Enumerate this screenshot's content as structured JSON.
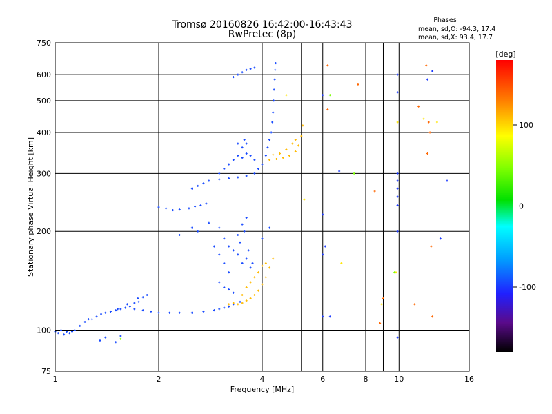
{
  "chart_data": {
    "type": "scatter",
    "title": "Tromsø 20160826 16:42:00-16:43:43",
    "subtitle": "RwPretec (8p)",
    "xlabel": "Frequency [MHz]",
    "ylabel": "Stationary phase Virtual Height [km]",
    "x_scale": "log",
    "y_scale": "log",
    "xlim": [
      1,
      16
    ],
    "ylim": [
      75,
      750
    ],
    "x_ticks": [
      {
        "value": 1,
        "label": "1"
      },
      {
        "value": 2,
        "label": "2"
      },
      {
        "value": 4,
        "label": "4"
      },
      {
        "value": 6,
        "label": "6"
      },
      {
        "value": 8,
        "label": "8"
      },
      {
        "value": 10,
        "label": "10"
      },
      {
        "value": 16,
        "label": "16"
      }
    ],
    "x_minor": [
      5.2,
      9.0
    ],
    "y_ticks": [
      {
        "value": 75,
        "label": "75"
      },
      {
        "value": 100,
        "label": "100"
      },
      {
        "value": 200,
        "label": "200"
      },
      {
        "value": 300,
        "label": "300"
      },
      {
        "value": 400,
        "label": "400"
      },
      {
        "value": 500,
        "label": "500"
      },
      {
        "value": 600,
        "label": "600"
      },
      {
        "value": 750,
        "label": "750"
      }
    ],
    "grid": true,
    "legend": {
      "title": "Phases",
      "line1": "mean, sd,O:  -94.3, 17.4",
      "line2": "mean, sd,X:   93.4, 17.7",
      "position": "top-right"
    },
    "colorbar": {
      "label": "[deg]",
      "ticks": [
        {
          "value": 100,
          "label": "100"
        },
        {
          "value": 0,
          "label": "0"
        },
        {
          "value": -100,
          "label": "-100"
        }
      ],
      "range": [
        -180,
        180
      ]
    },
    "series": [
      {
        "mode": "O",
        "phase_deg": -94,
        "points": [
          [
            1.0,
            99
          ],
          [
            1.02,
            98
          ],
          [
            1.04,
            100
          ],
          [
            1.06,
            97
          ],
          [
            1.08,
            99
          ],
          [
            1.1,
            98
          ],
          [
            1.12,
            99
          ],
          [
            1.14,
            100
          ],
          [
            1.18,
            103
          ],
          [
            1.22,
            106
          ],
          [
            1.25,
            108
          ],
          [
            1.28,
            108
          ],
          [
            1.32,
            110
          ],
          [
            1.36,
            112
          ],
          [
            1.4,
            113
          ],
          [
            1.45,
            114
          ],
          [
            1.5,
            115
          ],
          [
            1.55,
            116
          ],
          [
            1.6,
            117
          ],
          [
            1.65,
            118
          ],
          [
            1.7,
            121
          ],
          [
            1.75,
            122
          ],
          [
            1.8,
            126
          ],
          [
            1.85,
            128
          ],
          [
            1.62,
            120
          ],
          [
            1.52,
            116
          ],
          [
            1.74,
            125
          ],
          [
            1.7,
            116
          ],
          [
            1.8,
            115
          ],
          [
            1.9,
            114
          ],
          [
            2.0,
            113
          ],
          [
            2.15,
            113
          ],
          [
            2.3,
            113
          ],
          [
            2.5,
            113
          ],
          [
            2.7,
            114
          ],
          [
            2.9,
            115
          ],
          [
            3.0,
            116
          ],
          [
            3.1,
            117
          ],
          [
            3.2,
            118
          ],
          [
            3.3,
            120
          ],
          [
            3.45,
            122
          ],
          [
            2.0,
            237
          ],
          [
            2.1,
            235
          ],
          [
            2.2,
            232
          ],
          [
            2.3,
            233
          ],
          [
            2.45,
            235
          ],
          [
            2.55,
            238
          ],
          [
            2.65,
            240
          ],
          [
            2.75,
            243
          ],
          [
            2.5,
            270
          ],
          [
            2.6,
            275
          ],
          [
            2.7,
            280
          ],
          [
            2.8,
            285
          ],
          [
            3.0,
            288
          ],
          [
            3.2,
            290
          ],
          [
            3.4,
            292
          ],
          [
            3.6,
            295
          ],
          [
            3.8,
            300
          ],
          [
            3.9,
            310
          ],
          [
            4.0,
            320
          ],
          [
            4.1,
            340
          ],
          [
            4.15,
            360
          ],
          [
            4.2,
            380
          ],
          [
            4.25,
            400
          ],
          [
            4.28,
            430
          ],
          [
            4.3,
            460
          ],
          [
            4.32,
            500
          ],
          [
            4.33,
            540
          ],
          [
            4.35,
            580
          ],
          [
            4.36,
            620
          ],
          [
            4.38,
            650
          ],
          [
            3.0,
            300
          ],
          [
            3.1,
            310
          ],
          [
            3.2,
            320
          ],
          [
            3.3,
            330
          ],
          [
            3.4,
            340
          ],
          [
            3.5,
            335
          ],
          [
            3.6,
            345
          ],
          [
            3.7,
            340
          ],
          [
            3.8,
            330
          ],
          [
            3.4,
            370
          ],
          [
            3.5,
            360
          ],
          [
            3.6,
            370
          ],
          [
            3.55,
            380
          ],
          [
            3.0,
            205
          ],
          [
            3.1,
            190
          ],
          [
            3.2,
            180
          ],
          [
            3.3,
            175
          ],
          [
            3.4,
            170
          ],
          [
            3.5,
            160
          ],
          [
            3.6,
            165
          ],
          [
            3.7,
            155
          ],
          [
            3.4,
            195
          ],
          [
            3.5,
            210
          ],
          [
            3.6,
            220
          ],
          [
            3.55,
            200
          ],
          [
            3.45,
            185
          ],
          [
            3.65,
            175
          ],
          [
            3.75,
            160
          ],
          [
            2.3,
            195
          ],
          [
            2.5,
            205
          ],
          [
            2.6,
            200
          ],
          [
            2.8,
            212
          ],
          [
            2.9,
            180
          ],
          [
            3.0,
            170
          ],
          [
            3.1,
            160
          ],
          [
            3.2,
            150
          ],
          [
            3.0,
            140
          ],
          [
            3.1,
            135
          ],
          [
            3.2,
            133
          ],
          [
            3.3,
            130
          ],
          [
            3.3,
            590
          ],
          [
            3.4,
            600
          ],
          [
            3.5,
            610
          ],
          [
            3.6,
            620
          ],
          [
            3.7,
            625
          ],
          [
            3.8,
            630
          ],
          [
            4.2,
            205
          ],
          [
            4.0,
            190
          ],
          [
            1.4,
            95
          ],
          [
            1.5,
            92
          ],
          [
            1.55,
            96
          ],
          [
            1.35,
            93
          ]
        ]
      },
      {
        "mode": "X",
        "phase_deg": 110,
        "points": [
          [
            3.2,
            120
          ],
          [
            3.3,
            121
          ],
          [
            3.4,
            120
          ],
          [
            3.5,
            121
          ],
          [
            3.6,
            123
          ],
          [
            3.7,
            125
          ],
          [
            3.8,
            128
          ],
          [
            3.9,
            132
          ],
          [
            4.0,
            138
          ],
          [
            4.1,
            145
          ],
          [
            4.2,
            155
          ],
          [
            4.3,
            165
          ],
          [
            3.6,
            135
          ],
          [
            3.7,
            140
          ],
          [
            3.8,
            145
          ],
          [
            3.9,
            150
          ],
          [
            4.0,
            157
          ],
          [
            4.1,
            160
          ],
          [
            3.5,
            128
          ],
          [
            4.2,
            330
          ],
          [
            4.4,
            332
          ],
          [
            4.6,
            335
          ],
          [
            4.8,
            340
          ],
          [
            5.0,
            350
          ],
          [
            5.1,
            365
          ],
          [
            5.2,
            390
          ],
          [
            5.25,
            420
          ],
          [
            4.5,
            345
          ],
          [
            4.7,
            355
          ],
          [
            4.9,
            370
          ],
          [
            5.0,
            380
          ],
          [
            4.3,
            342
          ]
        ]
      },
      {
        "mode": "scatter",
        "phase_deg": -100,
        "points": [
          [
            6.0,
            520
          ],
          [
            6.0,
            225
          ],
          [
            6.0,
            170
          ],
          [
            6.0,
            110
          ],
          [
            6.7,
            305
          ],
          [
            9.9,
            600
          ],
          [
            9.9,
            530
          ],
          [
            9.9,
            300
          ],
          [
            9.9,
            285
          ],
          [
            9.9,
            270
          ],
          [
            9.9,
            255
          ],
          [
            9.9,
            240
          ],
          [
            9.9,
            200
          ],
          [
            12.1,
            580
          ],
          [
            12.5,
            615
          ],
          [
            13.2,
            190
          ],
          [
            13.8,
            285
          ],
          [
            9.9,
            95
          ],
          [
            6.3,
            110
          ],
          [
            6.1,
            180
          ]
        ]
      },
      {
        "mode": "scatter",
        "phase_deg": 140,
        "points": [
          [
            6.2,
            640
          ],
          [
            6.2,
            470
          ],
          [
            7.6,
            560
          ],
          [
            8.5,
            265
          ],
          [
            8.8,
            105
          ],
          [
            9.0,
            125
          ],
          [
            11.1,
            120
          ],
          [
            11.4,
            480
          ],
          [
            12.1,
            345
          ],
          [
            12.3,
            400
          ],
          [
            12.5,
            110
          ],
          [
            12.0,
            640
          ],
          [
            12.4,
            180
          ],
          [
            12.2,
            430
          ]
        ]
      },
      {
        "mode": "scatter",
        "phase_deg": 95,
        "points": [
          [
            4.7,
            520
          ],
          [
            5.3,
            250
          ],
          [
            6.8,
            160
          ],
          [
            9.9,
            430
          ],
          [
            9.8,
            150
          ],
          [
            11.8,
            440
          ],
          [
            12.9,
            430
          ],
          [
            8.9,
            120
          ]
        ]
      },
      {
        "mode": "scatter",
        "phase_deg": 45,
        "points": [
          [
            6.3,
            520
          ],
          [
            7.4,
            300
          ],
          [
            9.7,
            150
          ],
          [
            1.55,
            94
          ]
        ]
      }
    ]
  }
}
